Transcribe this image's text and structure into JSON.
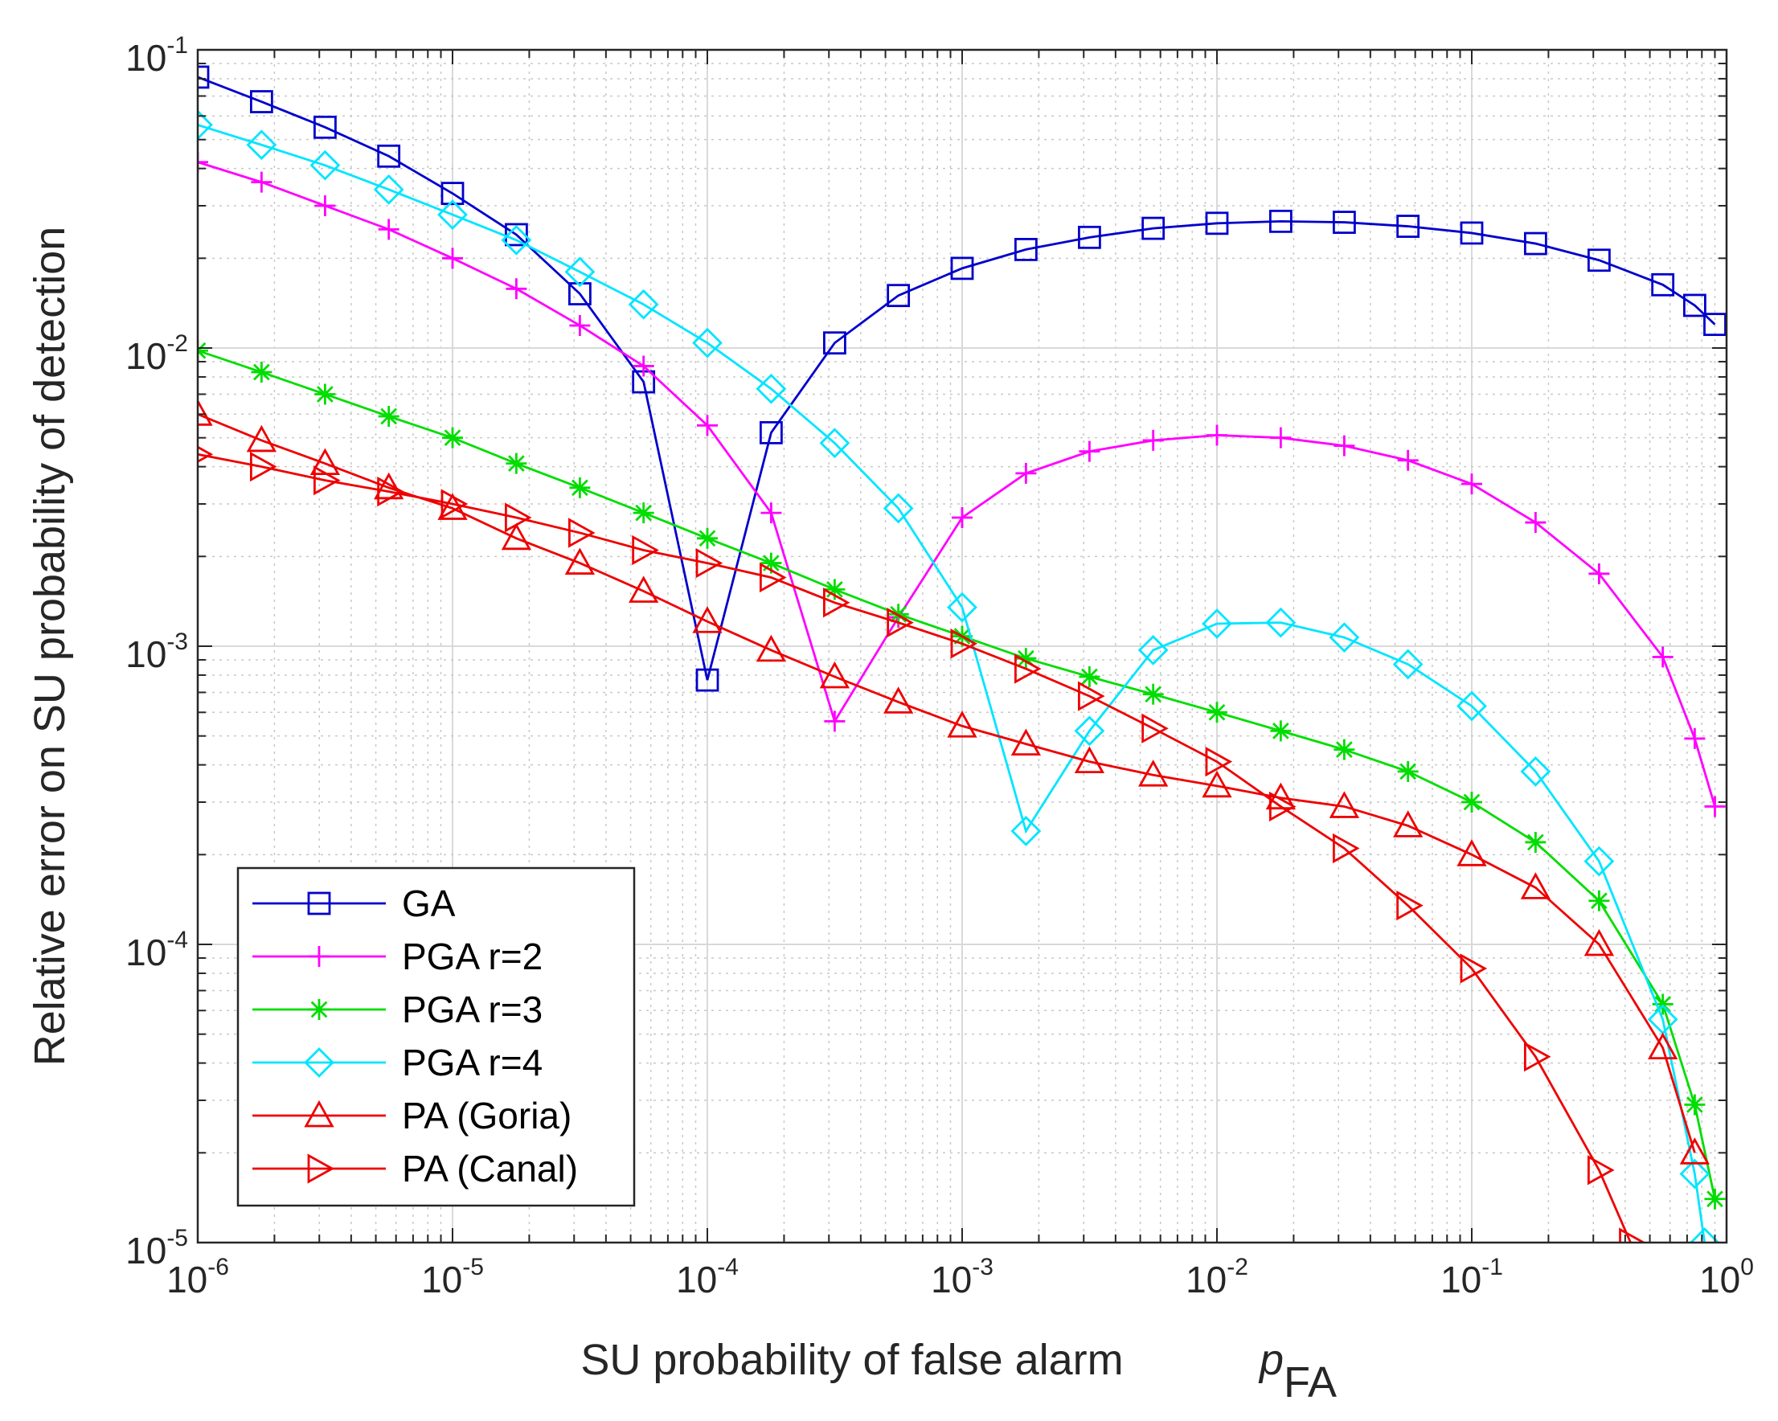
{
  "chart_data": {
    "type": "line",
    "title": "",
    "xscale": "log",
    "yscale": "log",
    "xlim": [
      1e-06,
      1
    ],
    "ylim": [
      1e-05,
      0.1
    ],
    "grid": true,
    "legend_position": "bottom-left",
    "xlabel": "SU probability of false alarm",
    "xlabel_symbol": "p",
    "xlabel_subscript": "FA",
    "ylabel": "Relative error on SU probability of detection",
    "x_ticks": [
      {
        "base": "10",
        "exp": "-6",
        "value": 1e-06
      },
      {
        "base": "10",
        "exp": "-5",
        "value": 1e-05
      },
      {
        "base": "10",
        "exp": "-4",
        "value": 0.0001
      },
      {
        "base": "10",
        "exp": "-3",
        "value": 0.001
      },
      {
        "base": "10",
        "exp": "-2",
        "value": 0.01
      },
      {
        "base": "10",
        "exp": "-1",
        "value": 0.1
      },
      {
        "base": "10",
        "exp": "0",
        "value": 1
      }
    ],
    "y_ticks": [
      {
        "base": "10",
        "exp": "-5",
        "value": 1e-05
      },
      {
        "base": "10",
        "exp": "-4",
        "value": 0.0001
      },
      {
        "base": "10",
        "exp": "-3",
        "value": 0.001
      },
      {
        "base": "10",
        "exp": "-2",
        "value": 0.01
      },
      {
        "base": "10",
        "exp": "-1",
        "value": 0.1
      }
    ],
    "series": [
      {
        "name": "GA",
        "color": "#0000cc",
        "marker": "square",
        "x": [
          1e-06,
          1.78e-06,
          3.16e-06,
          5.62e-06,
          1e-05,
          1.78e-05,
          3.16e-05,
          5.62e-05,
          0.0001,
          0.000178,
          0.000316,
          0.000562,
          0.001,
          0.00178,
          0.00316,
          0.00562,
          0.01,
          0.0178,
          0.0316,
          0.0562,
          0.1,
          0.178,
          0.316,
          0.562,
          0.75,
          0.9
        ],
        "y": [
          0.081,
          0.067,
          0.055,
          0.044,
          0.033,
          0.024,
          0.0152,
          0.0077,
          0.00077,
          0.0052,
          0.0104,
          0.015,
          0.0185,
          0.0214,
          0.0235,
          0.0252,
          0.0262,
          0.0266,
          0.0264,
          0.0256,
          0.0243,
          0.0224,
          0.0197,
          0.0163,
          0.0139,
          0.012
        ]
      },
      {
        "name": "PGA r=2",
        "color": "#ff00ff",
        "marker": "plus",
        "x": [
          1e-06,
          1.78e-06,
          3.16e-06,
          5.62e-06,
          1e-05,
          1.78e-05,
          3.16e-05,
          5.62e-05,
          0.0001,
          0.000178,
          0.000316,
          0.000562,
          0.001,
          0.00178,
          0.00316,
          0.00562,
          0.01,
          0.0178,
          0.0316,
          0.0562,
          0.1,
          0.178,
          0.316,
          0.562,
          0.75,
          0.9
        ],
        "y": [
          0.042,
          0.036,
          0.03,
          0.025,
          0.02,
          0.0158,
          0.0119,
          0.0087,
          0.0055,
          0.0028,
          0.00056,
          0.00125,
          0.0027,
          0.0038,
          0.0045,
          0.0049,
          0.0051,
          0.005,
          0.0047,
          0.0042,
          0.0035,
          0.0026,
          0.00175,
          0.00092,
          0.00049,
          0.00029
        ]
      },
      {
        "name": "PGA r=3",
        "color": "#00dd00",
        "marker": "asterisk",
        "x": [
          1e-06,
          1.78e-06,
          3.16e-06,
          5.62e-06,
          1e-05,
          1.78e-05,
          3.16e-05,
          5.62e-05,
          0.0001,
          0.000178,
          0.000316,
          0.000562,
          0.001,
          0.00178,
          0.00316,
          0.00562,
          0.01,
          0.0178,
          0.0316,
          0.0562,
          0.1,
          0.178,
          0.316,
          0.562,
          0.75,
          0.9
        ],
        "y": [
          0.0098,
          0.0083,
          0.007,
          0.0059,
          0.005,
          0.0041,
          0.0034,
          0.0028,
          0.0023,
          0.0019,
          0.00155,
          0.00128,
          0.00108,
          0.00091,
          0.00079,
          0.00069,
          0.0006,
          0.00052,
          0.00045,
          0.00038,
          0.0003,
          0.00022,
          0.00014,
          6.3e-05,
          2.9e-05,
          1.4e-05
        ]
      },
      {
        "name": "PGA r=4",
        "color": "#00e5ff",
        "marker": "diamond",
        "x": [
          1e-06,
          1.78e-06,
          3.16e-06,
          5.62e-06,
          1e-05,
          1.78e-05,
          3.16e-05,
          5.62e-05,
          0.0001,
          0.000178,
          0.000316,
          0.000562,
          0.001,
          0.00178,
          0.00316,
          0.00562,
          0.01,
          0.0178,
          0.0316,
          0.0562,
          0.1,
          0.178,
          0.316,
          0.562,
          0.75,
          0.82
        ],
        "y": [
          0.056,
          0.048,
          0.041,
          0.034,
          0.028,
          0.023,
          0.018,
          0.014,
          0.0104,
          0.0073,
          0.0048,
          0.0029,
          0.00135,
          0.00024,
          0.00052,
          0.00097,
          0.00119,
          0.0012,
          0.00107,
          0.00087,
          0.00063,
          0.00038,
          0.00019,
          5.6e-05,
          1.7e-05,
          1e-05
        ]
      },
      {
        "name": "PA (Goria)",
        "color": "#ee0000",
        "marker": "triangle-up",
        "x": [
          1e-06,
          1.78e-06,
          3.16e-06,
          5.62e-06,
          1e-05,
          1.78e-05,
          3.16e-05,
          5.62e-05,
          0.0001,
          0.000178,
          0.000316,
          0.000562,
          0.001,
          0.00178,
          0.00316,
          0.00562,
          0.01,
          0.0178,
          0.0316,
          0.0562,
          0.1,
          0.178,
          0.316,
          0.562,
          0.75
        ],
        "y": [
          0.006,
          0.0049,
          0.0041,
          0.0034,
          0.0029,
          0.0023,
          0.0019,
          0.00153,
          0.00121,
          0.00097,
          0.00079,
          0.00065,
          0.00054,
          0.00047,
          0.00041,
          0.00037,
          0.00034,
          0.00031,
          0.00029,
          0.00025,
          0.0002,
          0.000155,
          0.0001,
          4.5e-05,
          2e-05
        ]
      },
      {
        "name": "PA (Canal)",
        "color": "#ee0000",
        "marker": "triangle-right",
        "x": [
          1e-06,
          1.78e-06,
          3.16e-06,
          5.62e-06,
          1e-05,
          1.78e-05,
          3.16e-05,
          5.62e-05,
          0.0001,
          0.000178,
          0.000316,
          0.000562,
          0.001,
          0.00178,
          0.00316,
          0.00562,
          0.01,
          0.0178,
          0.0316,
          0.0562,
          0.1,
          0.178,
          0.316,
          0.42
        ],
        "y": [
          0.0044,
          0.004,
          0.0036,
          0.0033,
          0.003,
          0.0027,
          0.0024,
          0.0021,
          0.0019,
          0.0017,
          0.0014,
          0.0012,
          0.00102,
          0.00084,
          0.00068,
          0.00053,
          0.00041,
          0.00029,
          0.00021,
          0.000135,
          8.3e-05,
          4.2e-05,
          1.75e-05,
          1e-05
        ]
      }
    ]
  }
}
